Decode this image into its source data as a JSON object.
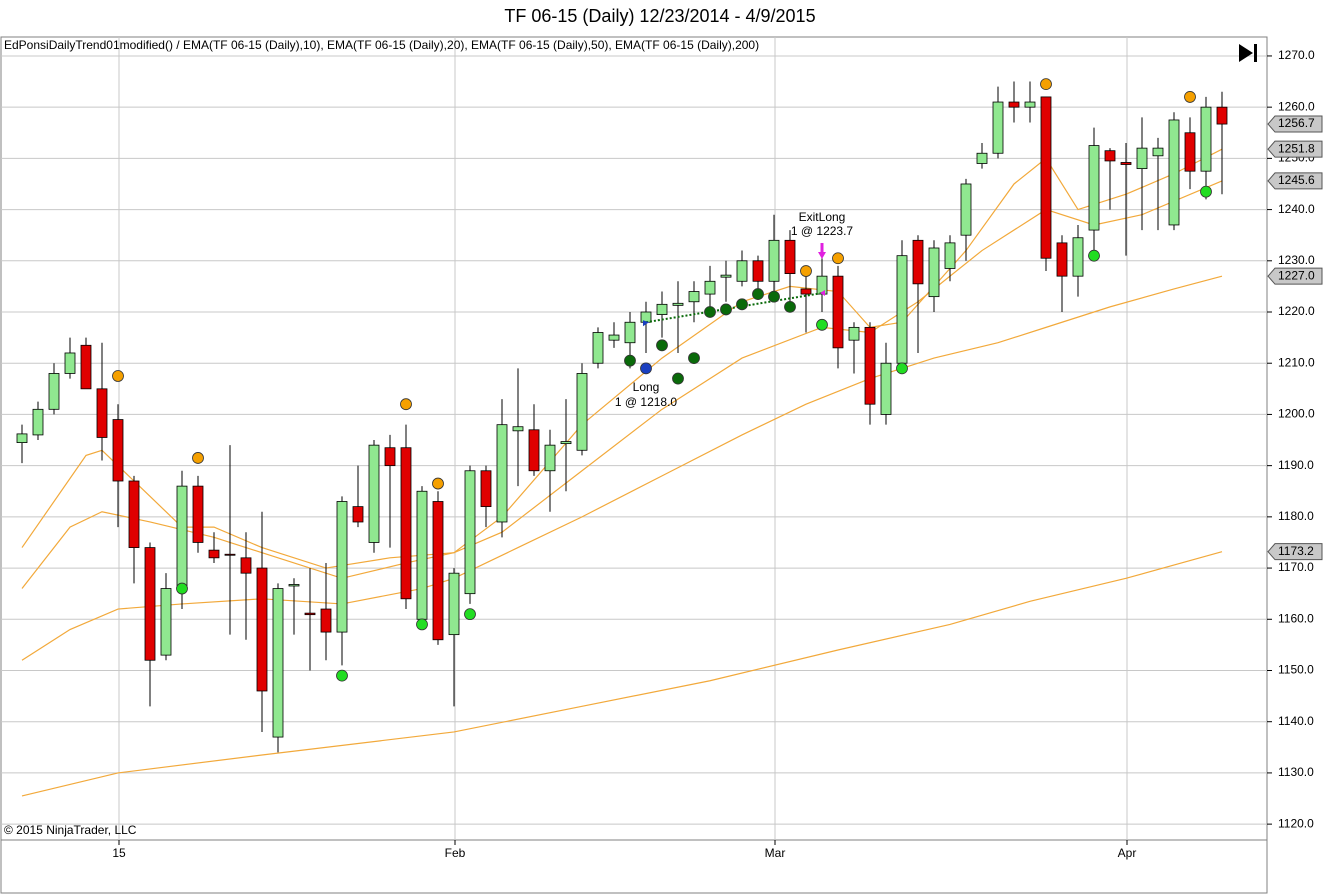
{
  "chart_data": {
    "type": "candlestick",
    "title": "TF 06-15 (Daily)  12/23/2014 - 4/9/2015",
    "subtitle": "EdPonsiDailyTrend01modified()  /  EMA(TF  06-15  (Daily),10),  EMA(TF  06-15  (Daily),20),  EMA(TF  06-15  (Daily),50),  EMA(TF  06-15  (Daily),200)",
    "copyright": "© 2015 NinjaTrader, LLC",
    "up_color": "#90e890",
    "down_color": "#e00000",
    "open": [
      1194.5,
      1196,
      1201,
      1208,
      1213.5,
      1205,
      1199,
      1187,
      1174,
      1153,
      1166,
      1186,
      1173.5,
      1172.7,
      1172,
      1170,
      1137,
      1166.5,
      1161.2,
      1162,
      1157.5,
      1182,
      1175,
      1193.5,
      1193.5,
      1160,
      1183,
      1157,
      1165,
      1189,
      1179,
      1196.8,
      1197,
      1189,
      1194.3,
      1193,
      1210,
      1214.5,
      1214,
      1218,
      1219.5,
      1221.3,
      1222,
      1223.5,
      1226.8,
      1226,
      1230,
      1226,
      1234,
      1224.5,
      1223.5,
      1227,
      1214.5,
      1217,
      1200,
      1210,
      1234,
      1223,
      1228.5,
      1235,
      1249,
      1251,
      1261,
      1260,
      1262,
      1233.5,
      1227,
      1236,
      1251.5,
      1249.2,
      1248,
      1250.5,
      1237,
      1255,
      1247.5,
      1260
    ],
    "high": [
      1198,
      1202.5,
      1210,
      1215,
      1215,
      1214,
      1202,
      1188,
      1175,
      1169,
      1189,
      1188,
      1177,
      1194,
      1177,
      1181,
      1167,
      1168,
      1170,
      1171,
      1184,
      1190,
      1195,
      1196,
      1198,
      1186,
      1185,
      1170,
      1190,
      1190,
      1203,
      1209,
      1202,
      1197,
      1203,
      1210,
      1217,
      1218,
      1220,
      1222,
      1224,
      1226,
      1226,
      1229,
      1230,
      1232,
      1231,
      1239,
      1236,
      1228,
      1231,
      1229,
      1218,
      1218,
      1214,
      1234,
      1235,
      1234,
      1235,
      1246,
      1253,
      1264,
      1265,
      1265,
      1262,
      1235,
      1237,
      1256,
      1252,
      1253,
      1258,
      1254,
      1259,
      1258,
      1262,
      1263
    ],
    "low": [
      1190.5,
      1195,
      1200,
      1207,
      1205,
      1191,
      1178,
      1167,
      1143,
      1152,
      1162,
      1173,
      1171,
      1157,
      1156,
      1138,
      1134,
      1157,
      1150,
      1152,
      1151,
      1178,
      1173,
      1174,
      1162,
      1159,
      1155,
      1143,
      1163,
      1178,
      1176,
      1186,
      1188,
      1181,
      1185,
      1192,
      1209,
      1213,
      1209,
      1212,
      1215,
      1212,
      1218,
      1219,
      1222,
      1225,
      1223,
      1223,
      1220,
      1216,
      1220,
      1209,
      1208,
      1198,
      1198,
      1208,
      1212,
      1220,
      1226,
      1230,
      1248,
      1250,
      1257,
      1257,
      1228,
      1220,
      1223,
      1232,
      1240,
      1231,
      1236,
      1236,
      1236,
      1244,
      1242,
      1243
    ],
    "close": [
      1196.2,
      1201,
      1208,
      1212,
      1205,
      1195.5,
      1187,
      1174,
      1152,
      1166,
      1186,
      1175,
      1172,
      1172.5,
      1169,
      1146,
      1166,
      1166.8,
      1160.9,
      1157.5,
      1183,
      1179,
      1194,
      1190,
      1164,
      1185,
      1156,
      1169,
      1189,
      1182,
      1198,
      1197.6,
      1189,
      1194,
      1194.7,
      1208,
      1216,
      1215.5,
      1218,
      1220,
      1221.5,
      1221.7,
      1224,
      1226,
      1227.2,
      1230,
      1226,
      1234,
      1227.5,
      1223.5,
      1227,
      1213,
      1217,
      1202,
      1210,
      1231,
      1225.5,
      1232.5,
      1233.5,
      1245,
      1251,
      1261,
      1260,
      1261,
      1230.5,
      1227,
      1234.5,
      1252.5,
      1249.5,
      1248.8,
      1252,
      1252,
      1257.5,
      1247.5,
      1260,
      1256.7
    ],
    "lines": [
      {
        "color": "#f2a93b",
        "x": [
          0,
          4,
          5,
          8,
          10,
          12,
          15,
          19,
          23,
          27,
          30,
          35,
          40,
          45,
          48,
          51,
          53,
          55,
          59,
          62,
          64,
          66,
          69,
          72,
          75
        ],
        "values": [
          1174,
          1192,
          1193,
          1184,
          1178,
          1178,
          1174,
          1170,
          1172,
          1173,
          1180,
          1198,
          1211,
          1222,
          1225,
          1224,
          1217,
          1218,
          1232,
          1245,
          1250,
          1240,
          1243,
          1247,
          1251.8
        ]
      },
      {
        "color": "#f2a93b",
        "x": [
          0,
          3,
          5,
          8,
          12,
          16,
          20,
          24,
          27,
          30,
          35,
          40,
          45,
          50,
          53,
          56,
          60,
          64,
          67,
          70,
          75
        ],
        "values": [
          1166,
          1178,
          1181,
          1179,
          1176,
          1172,
          1168,
          1171,
          1173,
          1177,
          1189,
          1201,
          1211,
          1217,
          1216,
          1222,
          1232,
          1240,
          1237,
          1239,
          1245.6
        ]
      },
      {
        "color": "#f2a93b",
        "x": [
          0,
          3,
          6,
          10,
          15,
          20,
          25,
          27,
          31,
          35,
          40,
          45,
          49,
          53,
          57,
          61,
          64,
          68,
          72,
          75
        ],
        "values": [
          1152,
          1158,
          1162,
          1163,
          1164,
          1163,
          1166,
          1168,
          1174,
          1180,
          1188,
          1196,
          1202,
          1207,
          1211,
          1214,
          1217,
          1221,
          1224.5,
          1227
        ]
      },
      {
        "color": "#f2a93b",
        "x": [
          0,
          6,
          15,
          27,
          35,
          43,
          51,
          58,
          63,
          69,
          75
        ],
        "values": [
          1125.5,
          1130,
          1133.5,
          1138,
          1143,
          1148,
          1154,
          1159,
          1163.5,
          1168,
          1173.2
        ]
      }
    ],
    "markers": [
      {
        "color": "#f5a000",
        "x": [
          6,
          11,
          24,
          26,
          49,
          51,
          64,
          73
        ],
        "y": [
          1207.5,
          1191.5,
          1202,
          1186.5,
          1228,
          1230.5,
          1264.5,
          1262
        ]
      },
      {
        "color": "#22dd22",
        "x": [
          10,
          20,
          25,
          28,
          50,
          55,
          67,
          74
        ],
        "y": [
          1166,
          1149,
          1159,
          1161,
          1217.5,
          1209,
          1231,
          1243.5
        ]
      },
      {
        "color": "#0a6a0a",
        "x": [
          38,
          40,
          41,
          42,
          43,
          44,
          45,
          46,
          47,
          48
        ],
        "y": [
          1210.5,
          1213.5,
          1207,
          1211,
          1220,
          1220.5,
          1221.5,
          1223.5,
          1223,
          1221
        ]
      },
      {
        "color": "#1a3fc0",
        "x": [
          39
        ],
        "y": [
          1209
        ]
      }
    ],
    "trade": {
      "entry_index": 39,
      "entry_price": 1218.0,
      "entry_label": "Long",
      "entry_text": "1 @ 1218.0",
      "exit_index": 50,
      "exit_price": 1223.7,
      "exit_label": "ExitLong",
      "exit_text": "1 @ 1223.7"
    },
    "price_markers": [
      {
        "value": 1256.7,
        "label": "1256.7"
      },
      {
        "value": 1251.8,
        "label": "1251.8"
      },
      {
        "value": 1245.6,
        "label": "1245.6"
      },
      {
        "value": 1227.0,
        "label": "1227.0"
      },
      {
        "value": 1173.2,
        "label": "1173.2"
      }
    ],
    "ylim": [
      1116.9,
      1273.7
    ],
    "yticks": [
      {
        "value": 1120,
        "label": "1120.0"
      },
      {
        "value": 1130,
        "label": "1130.0"
      },
      {
        "value": 1140,
        "label": "1140.0"
      },
      {
        "value": 1150,
        "label": "1150.0"
      },
      {
        "value": 1160,
        "label": "1160.0"
      },
      {
        "value": 1170,
        "label": "1170.0"
      },
      {
        "value": 1180,
        "label": "1180.0"
      },
      {
        "value": 1190,
        "label": "1190.0"
      },
      {
        "value": 1200,
        "label": "1200.0"
      },
      {
        "value": 1210,
        "label": "1210.0"
      },
      {
        "value": 1220,
        "label": "1220.0"
      },
      {
        "value": 1230,
        "label": "1230.0"
      },
      {
        "value": 1240,
        "label": "1240.0"
      },
      {
        "value": 1250,
        "label": "1250.0"
      },
      {
        "value": 1260,
        "label": "1260.0"
      },
      {
        "value": 1270,
        "label": "1270.0"
      }
    ],
    "xticks": [
      {
        "value": 6,
        "label": "15"
      },
      {
        "value": 27,
        "label": "Feb"
      },
      {
        "value": 47,
        "label": "Mar"
      },
      {
        "value": 69,
        "label": "Apr"
      }
    ],
    "grid": true
  }
}
